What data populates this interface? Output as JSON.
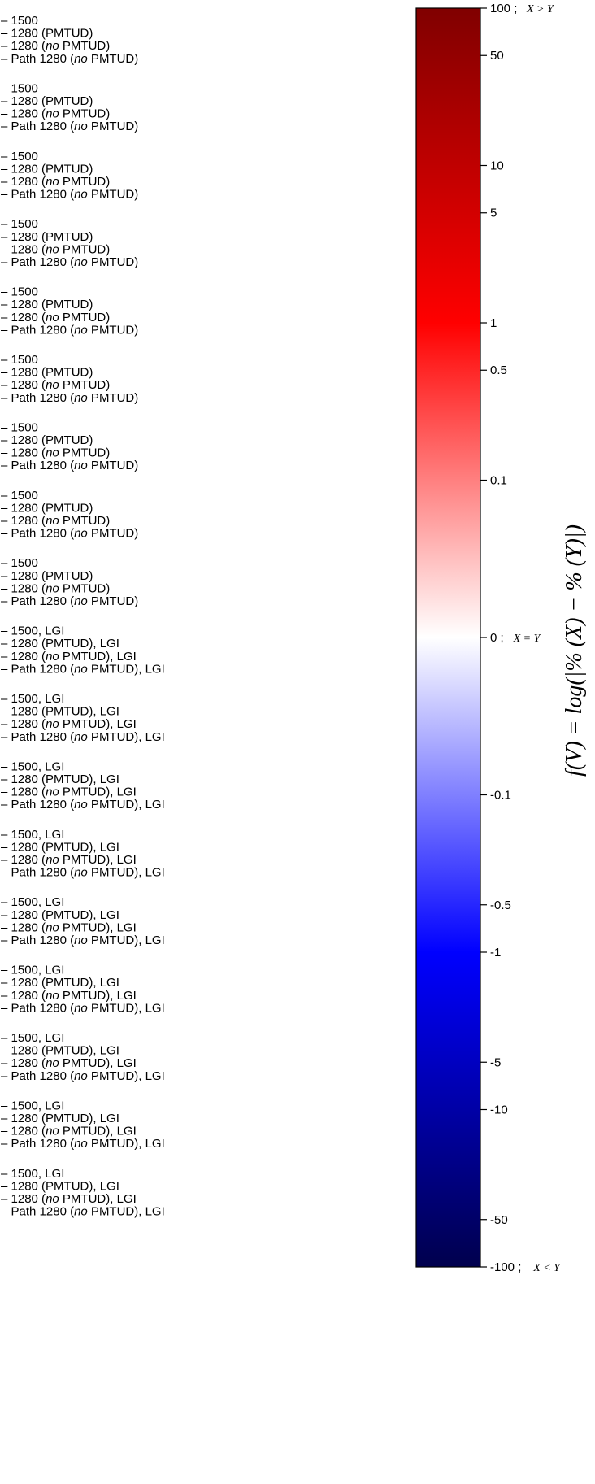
{
  "chart_data": {
    "type": "heatmap",
    "row_labels": [
      [
        "1500",
        "1280 (PMTUD)",
        "1280 (no PMTUD)",
        "Path 1280 (no PMTUD)"
      ],
      [
        "1500",
        "1280 (PMTUD)",
        "1280 (no PMTUD)",
        "Path 1280 (no PMTUD)"
      ],
      [
        "1500",
        "1280 (PMTUD)",
        "1280 (no PMTUD)",
        "Path 1280 (no PMTUD)"
      ],
      [
        "1500",
        "1280 (PMTUD)",
        "1280 (no PMTUD)",
        "Path 1280 (no PMTUD)"
      ],
      [
        "1500",
        "1280 (PMTUD)",
        "1280 (no PMTUD)",
        "Path 1280 (no PMTUD)"
      ],
      [
        "1500",
        "1280 (PMTUD)",
        "1280 (no PMTUD)",
        "Path 1280 (no PMTUD)"
      ],
      [
        "1500",
        "1280 (PMTUD)",
        "1280 (no PMTUD)",
        "Path 1280 (no PMTUD)"
      ],
      [
        "1500",
        "1280 (PMTUD)",
        "1280 (no PMTUD)",
        "Path 1280 (no PMTUD)"
      ],
      [
        "1500",
        "1280 (PMTUD)",
        "1280 (no PMTUD)",
        "Path 1280 (no PMTUD)"
      ],
      [
        "1500, LGI",
        "1280 (PMTUD), LGI",
        "1280 (no PMTUD), LGI",
        "Path 1280 (no PMTUD), LGI"
      ],
      [
        "1500, LGI",
        "1280 (PMTUD), LGI",
        "1280 (no PMTUD), LGI",
        "Path 1280 (no PMTUD), LGI"
      ],
      [
        "1500, LGI",
        "1280 (PMTUD), LGI",
        "1280 (no PMTUD), LGI",
        "Path 1280 (no PMTUD), LGI"
      ],
      [
        "1500, LGI",
        "1280 (PMTUD), LGI",
        "1280 (no PMTUD), LGI",
        "Path 1280 (no PMTUD), LGI"
      ],
      [
        "1500, LGI",
        "1280 (PMTUD), LGI",
        "1280 (no PMTUD), LGI",
        "Path 1280 (no PMTUD), LGI"
      ],
      [
        "1500, LGI",
        "1280 (PMTUD), LGI",
        "1280 (no PMTUD), LGI",
        "Path 1280 (no PMTUD), LGI"
      ],
      [
        "1500, LGI",
        "1280 (PMTUD), LGI",
        "1280 (no PMTUD), LGI",
        "Path 1280 (no PMTUD), LGI"
      ],
      [
        "1500, LGI",
        "1280 (PMTUD), LGI",
        "1280 (no PMTUD), LGI",
        "Path 1280 (no PMTUD), LGI"
      ],
      [
        "1500, LGI",
        "1280 (PMTUD), LGI",
        "1280 (no PMTUD), LGI",
        "Path 1280 (no PMTUD), LGI"
      ]
    ],
    "colorbar": {
      "colormap": "seismic",
      "scale": "symlog",
      "range": [
        -100,
        100
      ],
      "colors": [
        "#00004d",
        "#0000ff",
        "#ffffff",
        "#ff0000",
        "#800000"
      ],
      "ticks": [
        {
          "value": 100,
          "label": "100 ;",
          "math": "X > Y"
        },
        {
          "value": 50,
          "label": "50"
        },
        {
          "value": 10,
          "label": "10"
        },
        {
          "value": 5,
          "label": "5"
        },
        {
          "value": 1,
          "label": "1"
        },
        {
          "value": 0.5,
          "label": "0.5"
        },
        {
          "value": 0.1,
          "label": "0.1"
        },
        {
          "value": 0,
          "label": "0 ;",
          "math": "X = Y"
        },
        {
          "value": -0.1,
          "label": "-0.1"
        },
        {
          "value": -0.5,
          "label": "-0.5"
        },
        {
          "value": -1,
          "label": "-1"
        },
        {
          "value": -5,
          "label": "-5"
        },
        {
          "value": -10,
          "label": "-10"
        },
        {
          "value": -50,
          "label": "-50"
        },
        {
          "value": -100,
          "label": "-100 ;",
          "math": "X < Y"
        }
      ],
      "label": "f(V) = log(|%   (X) − %   (Y)|)"
    }
  }
}
